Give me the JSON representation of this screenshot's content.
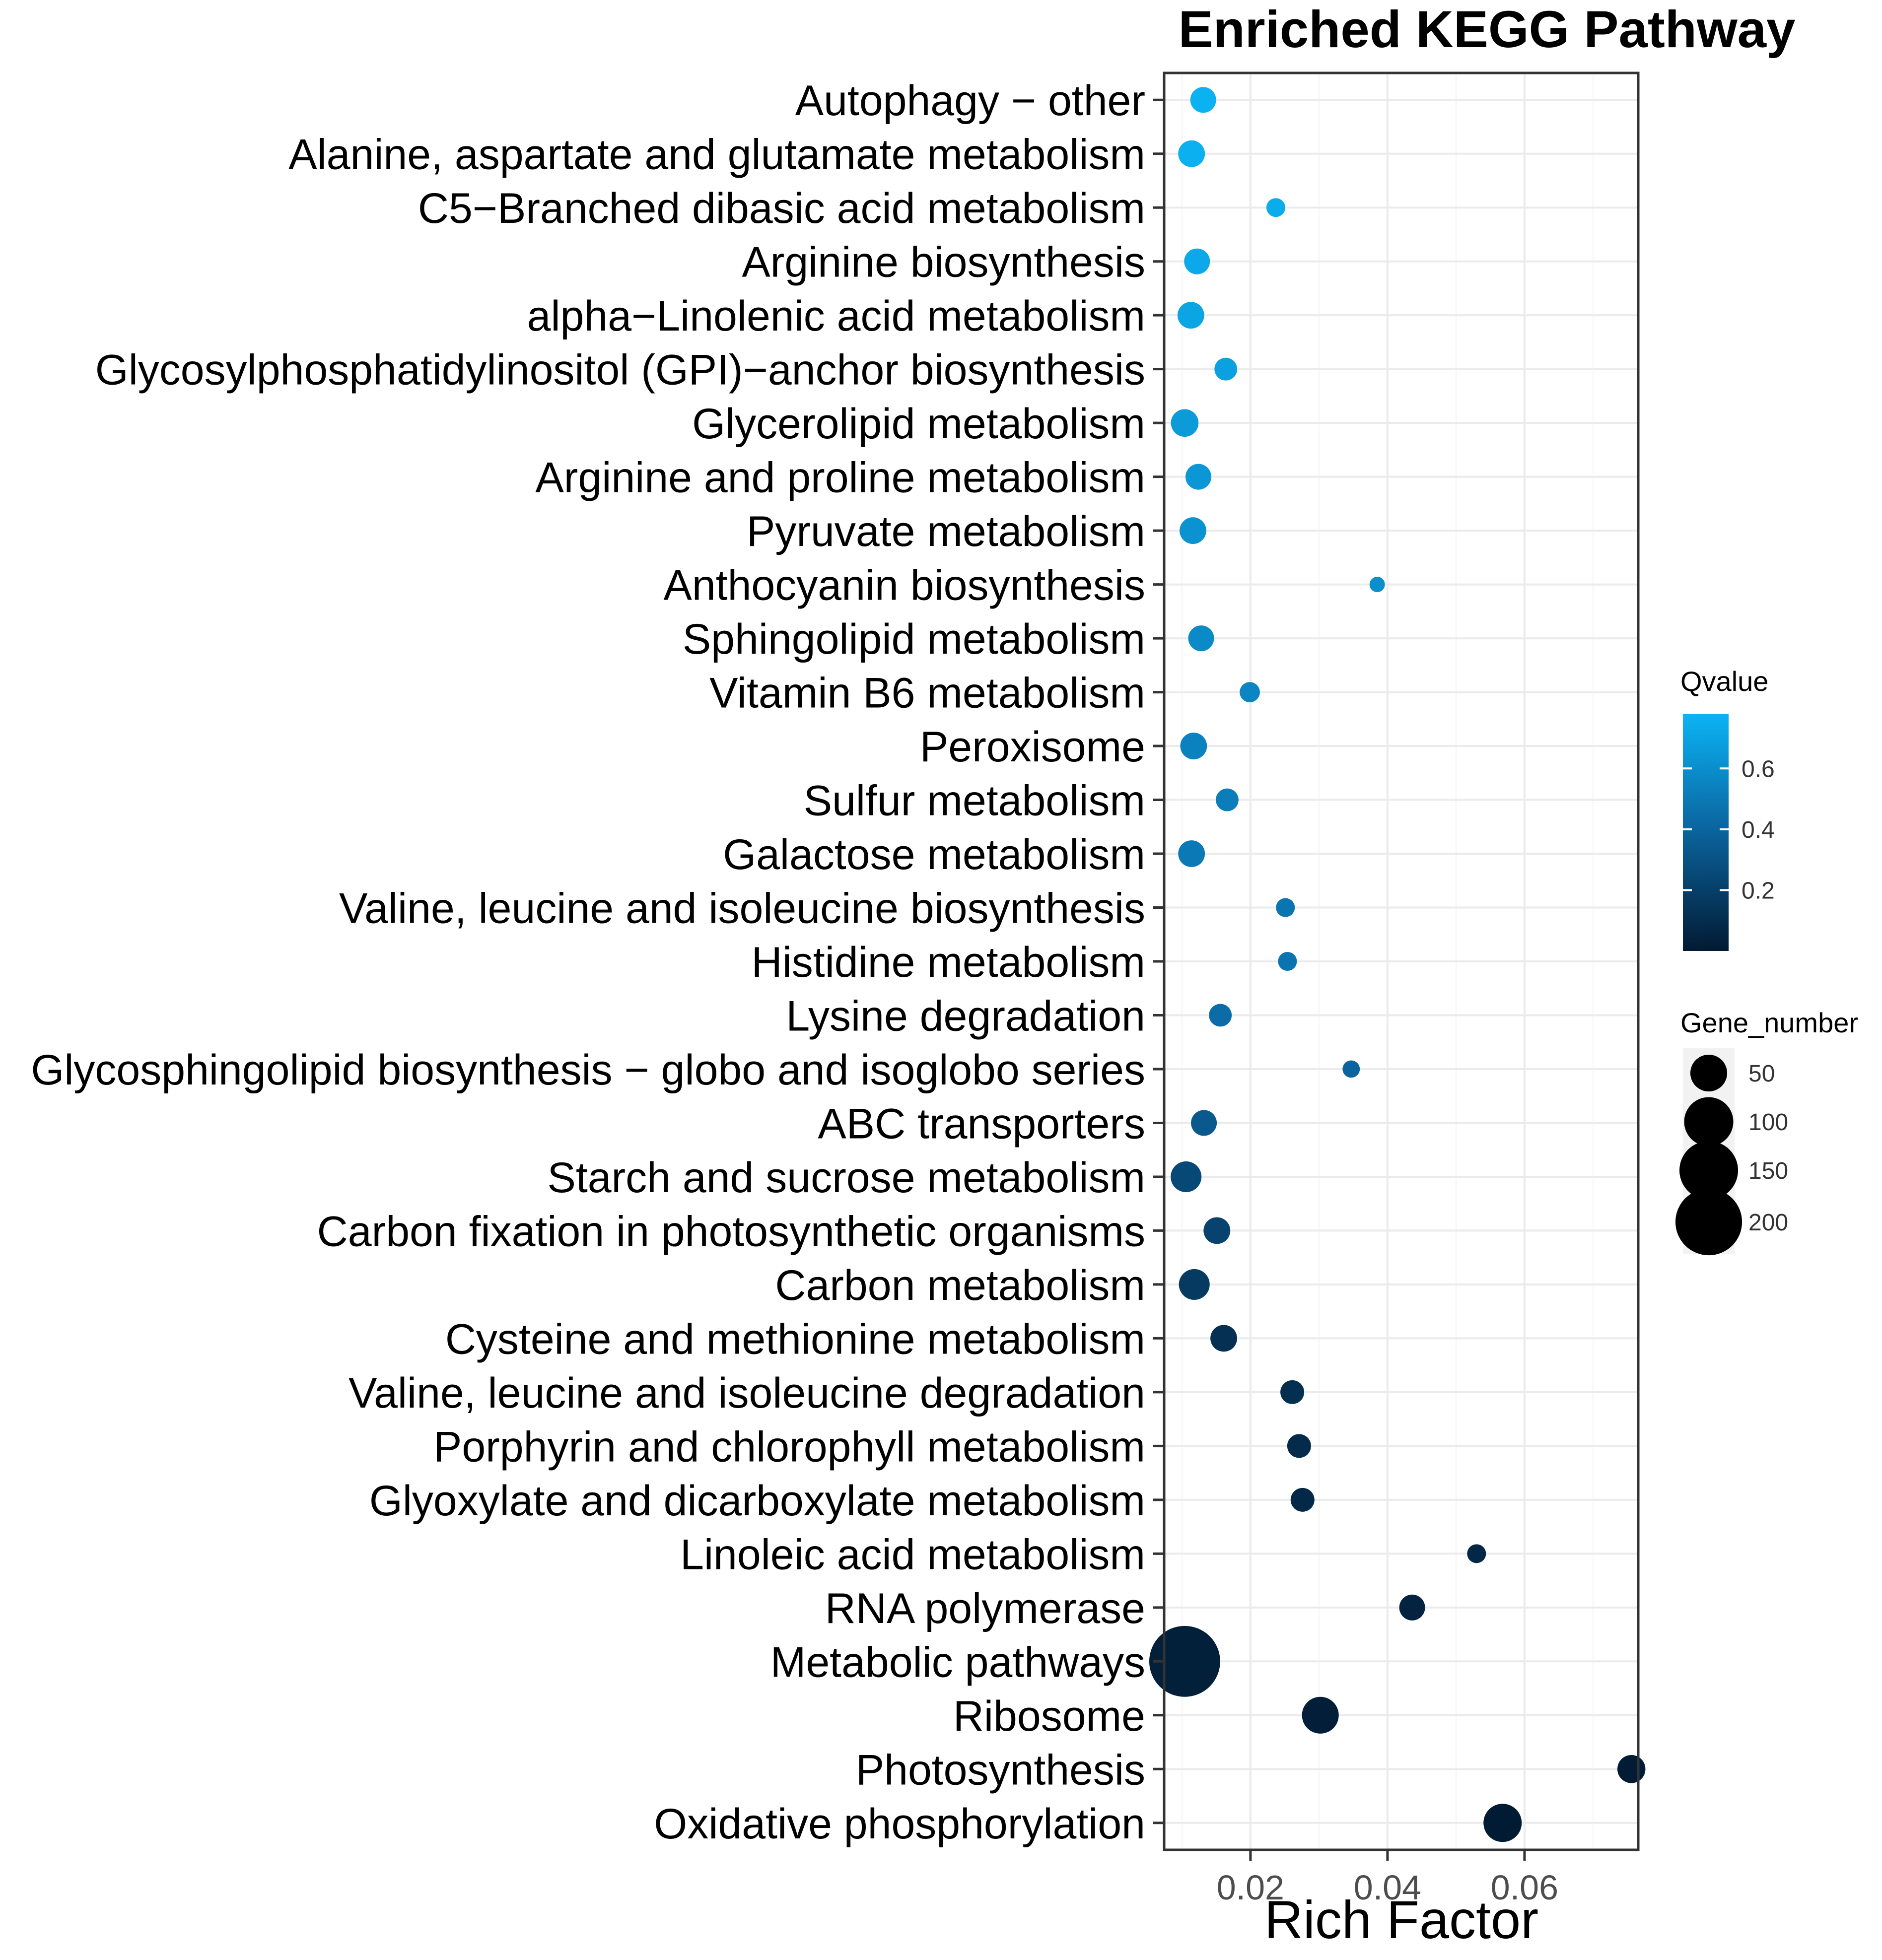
{
  "chart_data": {
    "type": "scatter",
    "title": "Enriched KEGG Pathway",
    "xlabel": "Rich Factor",
    "ylabel": "",
    "xlim": [
      0.0074,
      0.0766
    ],
    "xticks": [
      0.02,
      0.04,
      0.06
    ],
    "xtick_labels": [
      "0.02",
      "0.04",
      "0.06"
    ],
    "grid": true,
    "legend_position": "right",
    "qvalue_legend": {
      "title": "Qvalue",
      "range": [
        0.0,
        0.78
      ],
      "ticks": [
        0.2,
        0.4,
        0.6
      ],
      "tick_labels": [
        "0.2",
        "0.4",
        "0.6"
      ],
      "color_low": "#021a33",
      "color_high": "#0bb4f4"
    },
    "gene_number_legend": {
      "title": "Gene_number",
      "values": [
        50,
        100,
        150,
        200
      ],
      "labels": [
        "50",
        "100",
        "150",
        "200"
      ],
      "color": "#000000"
    },
    "points": [
      {
        "pathway": "Autophagy − other",
        "rich_factor": 0.0131,
        "qvalue": 0.77,
        "gene_number": 20
      },
      {
        "pathway": "Alanine, aspartate and glutamate metabolism",
        "rich_factor": 0.0114,
        "qvalue": 0.76,
        "gene_number": 22
      },
      {
        "pathway": "C5−Branched dibasic acid metabolism",
        "rich_factor": 0.0237,
        "qvalue": 0.74,
        "gene_number": 8
      },
      {
        "pathway": "Arginine biosynthesis",
        "rich_factor": 0.0122,
        "qvalue": 0.73,
        "gene_number": 20
      },
      {
        "pathway": "alpha−Linolenic acid metabolism",
        "rich_factor": 0.0113,
        "qvalue": 0.71,
        "gene_number": 22
      },
      {
        "pathway": "Glycosylphosphatidylinositol (GPI)−anchor biosynthesis",
        "rich_factor": 0.0164,
        "qvalue": 0.69,
        "gene_number": 14
      },
      {
        "pathway": "Glycerolipid metabolism",
        "rich_factor": 0.0104,
        "qvalue": 0.66,
        "gene_number": 24
      },
      {
        "pathway": "Arginine and proline metabolism",
        "rich_factor": 0.0124,
        "qvalue": 0.64,
        "gene_number": 20
      },
      {
        "pathway": "Pyruvate metabolism",
        "rich_factor": 0.0116,
        "qvalue": 0.62,
        "gene_number": 22
      },
      {
        "pathway": "Anthocyanin biosynthesis",
        "rich_factor": 0.0385,
        "qvalue": 0.6,
        "gene_number": 4
      },
      {
        "pathway": "Sphingolipid metabolism",
        "rich_factor": 0.0128,
        "qvalue": 0.58,
        "gene_number": 20
      },
      {
        "pathway": "Vitamin B6 metabolism",
        "rich_factor": 0.0199,
        "qvalue": 0.56,
        "gene_number": 10
      },
      {
        "pathway": "Peroxisome",
        "rich_factor": 0.0117,
        "qvalue": 0.54,
        "gene_number": 22
      },
      {
        "pathway": "Sulfur metabolism",
        "rich_factor": 0.0166,
        "qvalue": 0.52,
        "gene_number": 14
      },
      {
        "pathway": "Galactose metabolism",
        "rich_factor": 0.0114,
        "qvalue": 0.5,
        "gene_number": 22
      },
      {
        "pathway": "Valine, leucine and isoleucine biosynthesis",
        "rich_factor": 0.0251,
        "qvalue": 0.48,
        "gene_number": 8
      },
      {
        "pathway": "Histidine metabolism",
        "rich_factor": 0.0254,
        "qvalue": 0.47,
        "gene_number": 8
      },
      {
        "pathway": "Lysine degradation",
        "rich_factor": 0.0156,
        "qvalue": 0.44,
        "gene_number": 14
      },
      {
        "pathway": "Glycosphingolipid biosynthesis − globo and isoglobo series",
        "rich_factor": 0.0347,
        "qvalue": 0.4,
        "gene_number": 6
      },
      {
        "pathway": "ABC transporters",
        "rich_factor": 0.0132,
        "qvalue": 0.34,
        "gene_number": 20
      },
      {
        "pathway": "Starch and sucrose metabolism",
        "rich_factor": 0.0106,
        "qvalue": 0.25,
        "gene_number": 32
      },
      {
        "pathway": "Carbon fixation in photosynthetic organisms",
        "rich_factor": 0.0151,
        "qvalue": 0.22,
        "gene_number": 22
      },
      {
        "pathway": "Carbon metabolism",
        "rich_factor": 0.0118,
        "qvalue": 0.17,
        "gene_number": 32
      },
      {
        "pathway": "Cysteine and methionine metabolism",
        "rich_factor": 0.0161,
        "qvalue": 0.12,
        "gene_number": 22
      },
      {
        "pathway": "Valine, leucine and isoleucine degradation",
        "rich_factor": 0.0261,
        "qvalue": 0.11,
        "gene_number": 16
      },
      {
        "pathway": "Porphyrin and chlorophyll metabolism",
        "rich_factor": 0.0271,
        "qvalue": 0.09,
        "gene_number": 16
      },
      {
        "pathway": "Glyoxylate and dicarboxylate metabolism",
        "rich_factor": 0.0276,
        "qvalue": 0.08,
        "gene_number": 16
      },
      {
        "pathway": "Linoleic acid metabolism",
        "rich_factor": 0.053,
        "qvalue": 0.07,
        "gene_number": 8
      },
      {
        "pathway": "RNA polymerase",
        "rich_factor": 0.0436,
        "qvalue": 0.05,
        "gene_number": 20
      },
      {
        "pathway": "Metabolic pathways",
        "rich_factor": 0.0104,
        "qvalue": 0.03,
        "gene_number": 230
      },
      {
        "pathway": "Ribosome",
        "rich_factor": 0.0302,
        "qvalue": 0.02,
        "gene_number": 50
      },
      {
        "pathway": "Photosynthesis",
        "rich_factor": 0.0756,
        "qvalue": 0.01,
        "gene_number": 25
      },
      {
        "pathway": "Oxidative phosphorylation",
        "rich_factor": 0.0568,
        "qvalue": 0.005,
        "gene_number": 55
      }
    ]
  }
}
